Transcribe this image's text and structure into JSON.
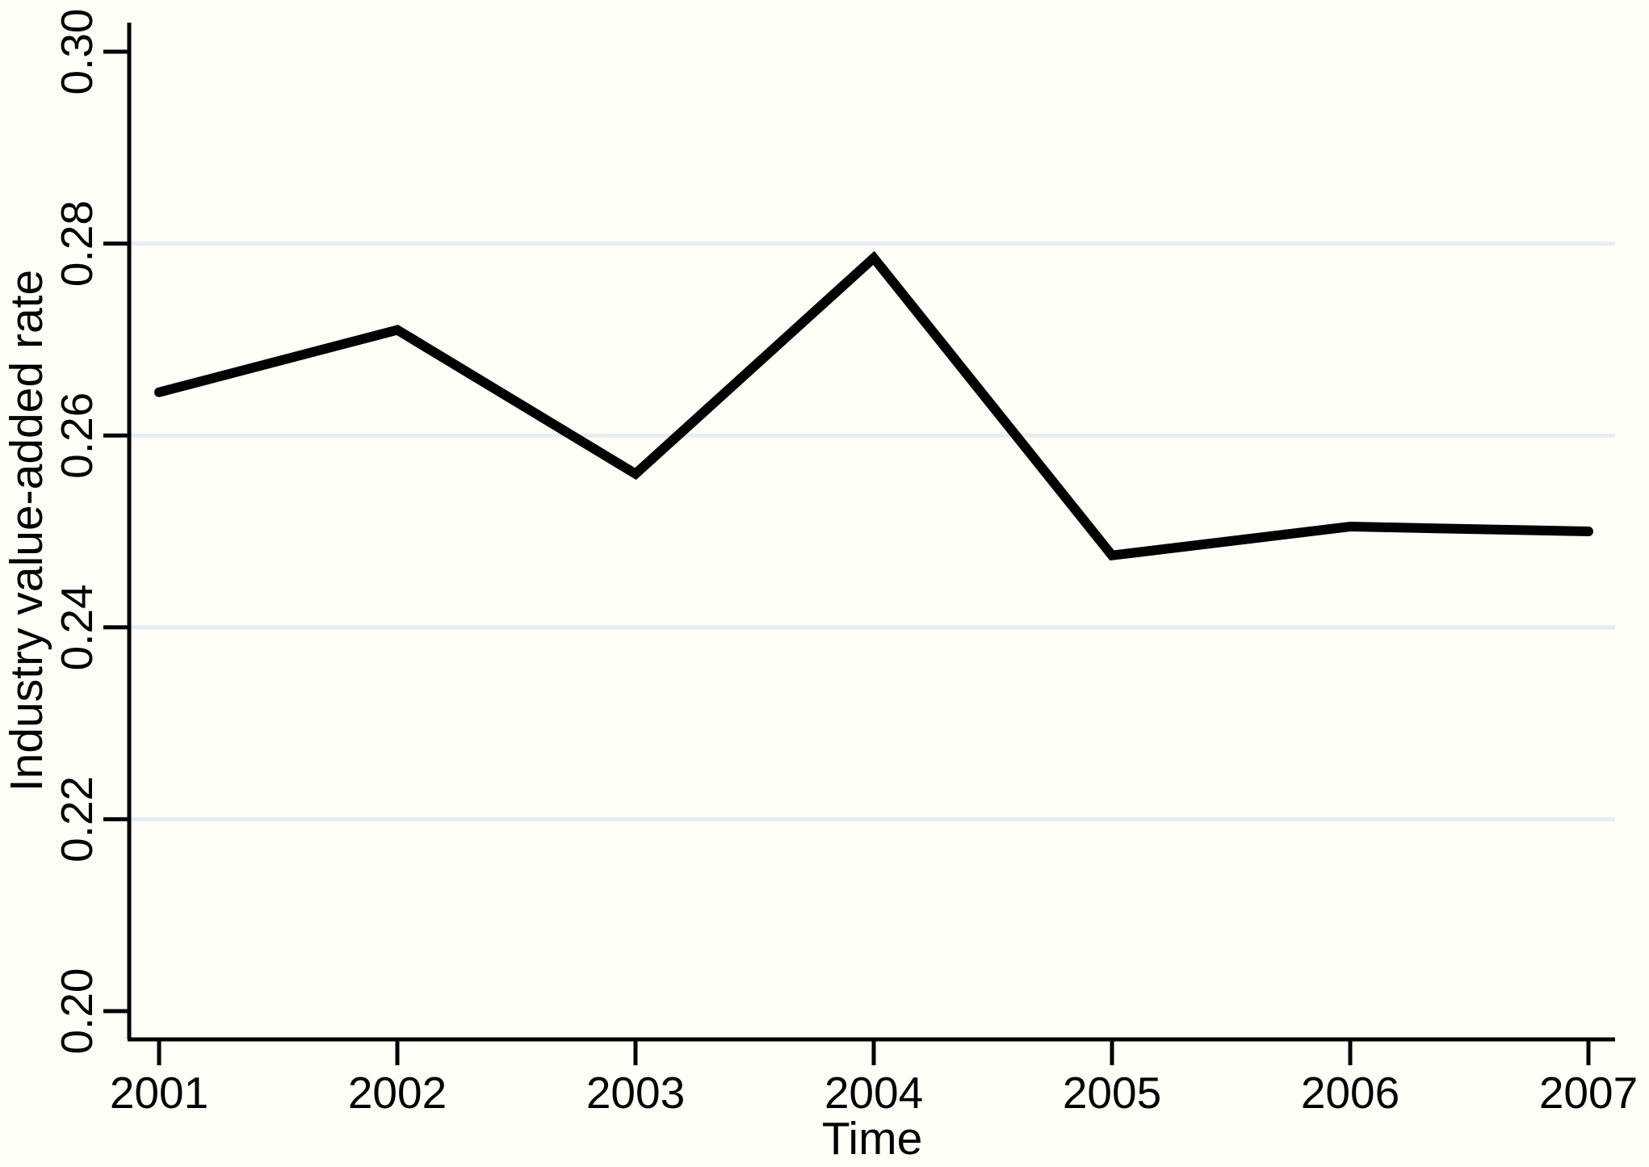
{
  "chart_data": {
    "type": "line",
    "title": "",
    "xlabel": "Time",
    "ylabel": "Industry value-added rate",
    "x": [
      2001,
      2002,
      2003,
      2004,
      2005,
      2006,
      2007
    ],
    "series": [
      {
        "name": "Industry value-added rate",
        "values": [
          0.2645,
          0.271,
          0.256,
          0.2785,
          0.2475,
          0.2505,
          0.25
        ]
      }
    ],
    "x_tick_labels": [
      "2001",
      "2002",
      "2003",
      "2004",
      "2005",
      "2006",
      "2007"
    ],
    "y_ticks": [
      0.2,
      0.22,
      0.24,
      0.26,
      0.28,
      0.3
    ],
    "y_tick_labels": [
      "0.20",
      "0.22",
      "0.24",
      "0.26",
      "0.28",
      "0.30"
    ],
    "grid_values": [
      0.22,
      0.24,
      0.26,
      0.28
    ],
    "xlim": [
      2001,
      2007
    ],
    "ylim": [
      0.2,
      0.3
    ],
    "grid": "horizontal-only",
    "legend": "none",
    "colors": {
      "line": "#000000",
      "axis": "#000000",
      "text": "#000000",
      "gridline": "#e3edf2",
      "background": "#fffef7"
    }
  }
}
